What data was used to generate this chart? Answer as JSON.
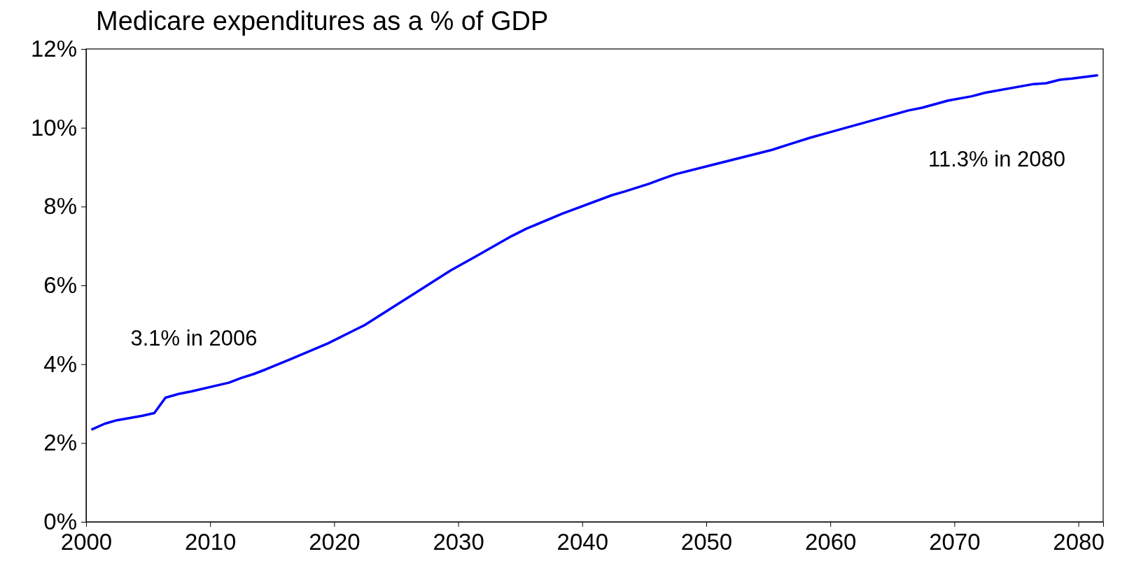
{
  "chart_data": {
    "type": "line",
    "title": "Medicare expenditures as a % of GDP",
    "xlim": [
      2000,
      2082
    ],
    "xticks": [
      2000,
      2010,
      2020,
      2030,
      2040,
      2050,
      2060,
      2070,
      2080
    ],
    "ylim": [
      0,
      12
    ],
    "yticks": [
      {
        "value": 0,
        "label": "0%"
      },
      {
        "value": 2,
        "label": "2%"
      },
      {
        "value": 4,
        "label": "4%"
      },
      {
        "value": 6,
        "label": "6%"
      },
      {
        "value": 8,
        "label": "8%"
      },
      {
        "value": 10,
        "label": "10%"
      },
      {
        "value": 12,
        "label": "12%"
      }
    ],
    "grid": false,
    "marker": "none",
    "line_style": "solid",
    "annotations": [
      "3.1% in 2006",
      "11.3% in 2080"
    ],
    "series": [
      {
        "color": "#0000ff",
        "x": [
          2000.5,
          2001.5,
          2002.5,
          2004.5,
          2005.5,
          2006.4,
          2007.5,
          2008.5,
          2010.4,
          2011.5,
          2012.5,
          2013.5,
          2014.5,
          2016.5,
          2019.5,
          2022.5,
          2023.5,
          2025.5,
          2026.5,
          2029.4,
          2031.5,
          2034.3,
          2035.5,
          2038.4,
          2042.4,
          2043.4,
          2045.4,
          2046.5,
          2047.5,
          2055.3,
          2056.5,
          2058.4,
          2060,
          2066.3,
          2067.4,
          2069.5,
          2071.4,
          2072.5,
          2076.4,
          2077.4,
          2078.5,
          2079.5,
          2081.5
        ],
        "values": [
          2.35,
          2.49,
          2.58,
          2.69,
          2.76,
          3.15,
          3.25,
          3.31,
          3.45,
          3.53,
          3.65,
          3.75,
          3.87,
          4.13,
          4.53,
          5.0,
          5.2,
          5.6,
          5.8,
          6.38,
          6.75,
          7.25,
          7.44,
          7.82,
          8.29,
          8.38,
          8.58,
          8.71,
          8.82,
          9.44,
          9.56,
          9.75,
          9.89,
          10.44,
          10.51,
          10.69,
          10.8,
          10.89,
          11.11,
          11.13,
          11.22,
          11.25,
          11.33
        ]
      }
    ]
  }
}
